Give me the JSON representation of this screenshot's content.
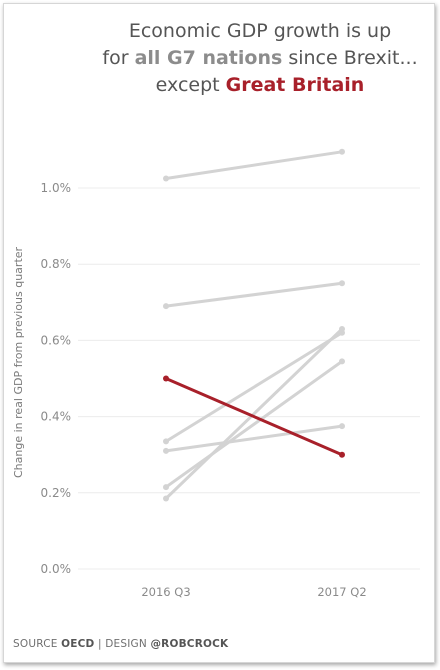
{
  "title": {
    "line1": "Economic GDP growth is up",
    "line2_prefix": "for ",
    "line2_highlight": "all G7 nations",
    "line2_suffix": " since Brexit...",
    "line3_prefix": "except ",
    "line3_highlight": "Great Britain"
  },
  "footer": {
    "source_prefix": "SOURCE ",
    "source": "OECD",
    "separator": " | ",
    "design_prefix": "DESIGN ",
    "design": "@ROBCROCK"
  },
  "colors": {
    "highlight": "#a8202a",
    "others": "#d3d3d3",
    "grid": "#ececec",
    "tick_text": "#8a8a8a"
  },
  "chart_data": {
    "type": "line",
    "xlabel": "",
    "ylabel": "Change in real GDP from previous quarter",
    "categories": [
      "2016 Q3",
      "2017 Q2"
    ],
    "ylim": [
      0,
      1.1
    ],
    "yticks": [
      {
        "value": 0.0,
        "label": "0.0%"
      },
      {
        "value": 0.2,
        "label": "0.2%"
      },
      {
        "value": 0.4,
        "label": "0.4%"
      },
      {
        "value": 0.6,
        "label": "0.6%"
      },
      {
        "value": 0.8,
        "label": "0.8%"
      },
      {
        "value": 1.0,
        "label": "1.0%"
      }
    ],
    "grid": true,
    "series": [
      {
        "values": [
          1.025,
          1.095
        ],
        "highlight": false
      },
      {
        "values": [
          0.69,
          0.75
        ],
        "highlight": false
      },
      {
        "values": [
          0.335,
          0.62
        ],
        "highlight": false
      },
      {
        "values": [
          0.31,
          0.375
        ],
        "highlight": false
      },
      {
        "values": [
          0.215,
          0.545
        ],
        "highlight": false
      },
      {
        "values": [
          0.185,
          0.63
        ],
        "highlight": false
      },
      {
        "name": "Great Britain",
        "values": [
          0.5,
          0.3
        ],
        "highlight": true
      }
    ]
  }
}
